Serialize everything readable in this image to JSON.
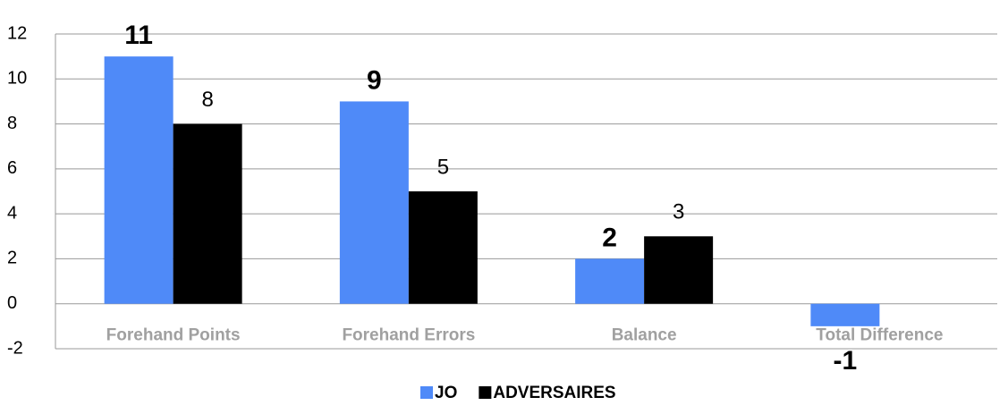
{
  "chart_data": {
    "type": "bar",
    "categories": [
      "Forehand Points",
      "Forehand Errors",
      "Balance",
      "Total Difference"
    ],
    "series": [
      {
        "name": "JO",
        "color": "#4f8af8",
        "values": [
          11,
          9,
          2,
          -1
        ]
      },
      {
        "name": "ADVERSAIRES",
        "color": "#000000",
        "values": [
          8,
          5,
          3,
          null
        ]
      }
    ],
    "ylim": [
      -2,
      12
    ],
    "yticks": [
      -2,
      0,
      2,
      4,
      6,
      8,
      10,
      12
    ],
    "grid": true,
    "legend": "bottom"
  }
}
